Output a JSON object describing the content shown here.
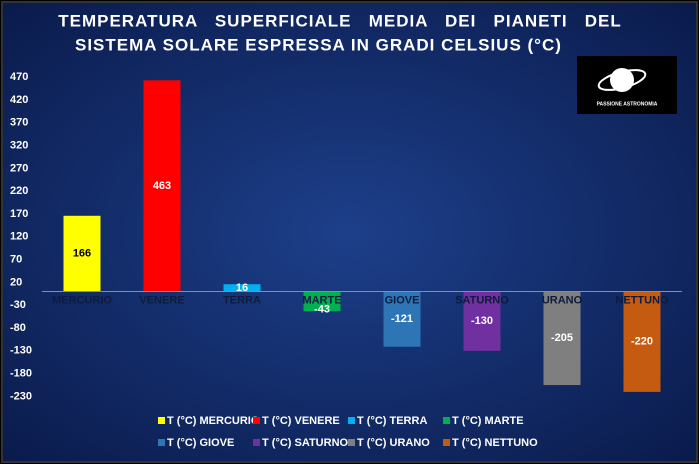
{
  "chart_data": {
    "type": "bar",
    "title": [
      "TEMPERATURA   SUPERFICIALE   MEDIA   DEI   PIANETI   DEL",
      "SISTEMA SOLARE ESPRESSA IN GRADI CELSIUS (°C)"
    ],
    "logo_text": "PASSIONE ASTRONOMIA",
    "categories": [
      "MERCURIO",
      "VENERE",
      "TERRA",
      "MARTE",
      "GIOVE",
      "SATURNO",
      "URANO",
      "NETTUNO"
    ],
    "values": [
      166,
      463,
      16,
      -43,
      -121,
      -130,
      -205,
      -220
    ],
    "colors": [
      "#ffff00",
      "#ff0000",
      "#00b0f0",
      "#00b050",
      "#2e75b6",
      "#7030a0",
      "#7f7f7f",
      "#c55a11"
    ],
    "legend": [
      "T (°C) MERCURIO",
      "T (°C) VENERE",
      "T (°C) TERRA",
      "T (°C) MARTE",
      "T (°C) GIOVE",
      "T (°C) SATURNO",
      "T (°C) URANO",
      "T (°C) NETTUNO"
    ],
    "ylim": [
      -240,
      490
    ],
    "yticks": [
      -230,
      -180,
      -130,
      -80,
      -30,
      20,
      70,
      120,
      170,
      220,
      270,
      320,
      370,
      420,
      470
    ],
    "grid": false
  }
}
